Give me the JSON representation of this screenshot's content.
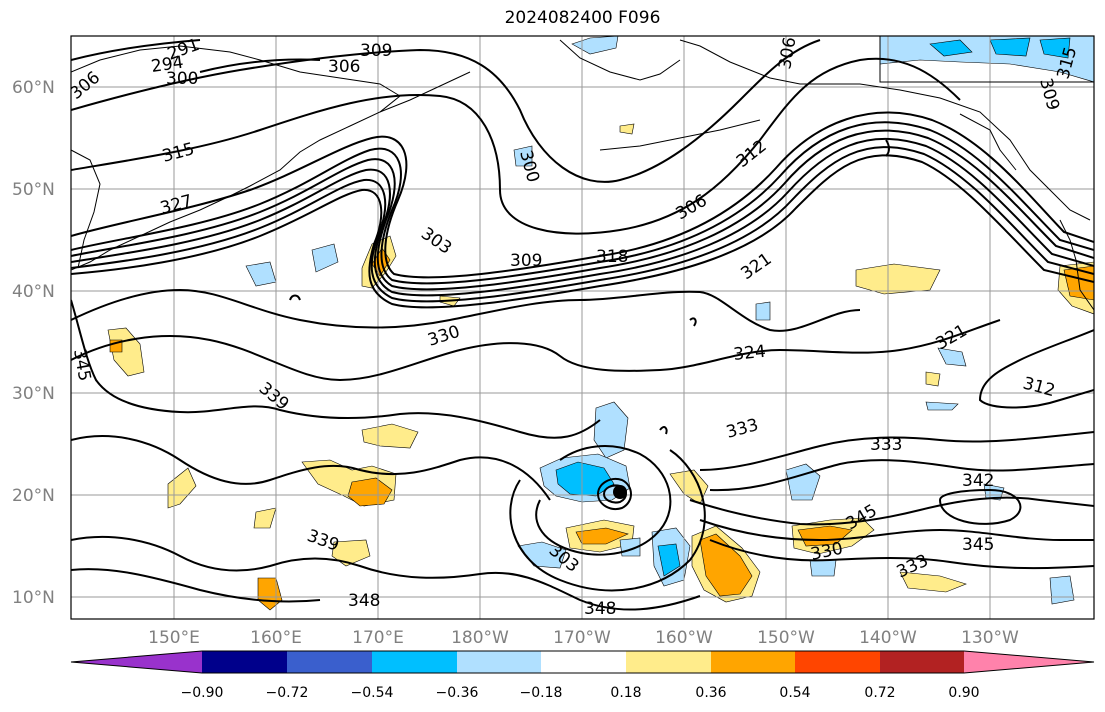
{
  "title": "2024082400 F096",
  "map": {
    "lon_ticks": [
      "150°E",
      "160°E",
      "170°E",
      "180°W",
      "170°W",
      "160°W",
      "150°W",
      "140°W",
      "130°W"
    ],
    "lat_ticks": [
      "60°N",
      "50°N",
      "40°N",
      "30°N",
      "20°N",
      "10°N"
    ],
    "contour_labels": [
      "291",
      "294",
      "300",
      "306",
      "309",
      "306",
      "306",
      "315",
      "327",
      "300",
      "312",
      "303",
      "309",
      "318",
      "306",
      "321",
      "330",
      "324",
      "321",
      "312",
      "345",
      "339",
      "333",
      "333",
      "342",
      "339",
      "345",
      "345",
      "330",
      "333",
      "348",
      "348",
      "309",
      "315",
      "303"
    ],
    "contour_color": "#000000",
    "coastline_color": "#000000",
    "gridline_color": "#9a9a9a"
  },
  "colorbar": {
    "tick_labels": [
      "−0.90",
      "−0.72",
      "−0.54",
      "−0.36",
      "−0.18",
      "0.18",
      "0.36",
      "0.54",
      "0.72",
      "0.90"
    ],
    "colors": [
      "#9932CC",
      "#00008B",
      "#3A5FCD",
      "#00BFFF",
      "#B0E0FF",
      "#FFFFFF",
      "#FFEC8B",
      "#FFA500",
      "#FF4500",
      "#B22222",
      "#FF82AB"
    ]
  }
}
